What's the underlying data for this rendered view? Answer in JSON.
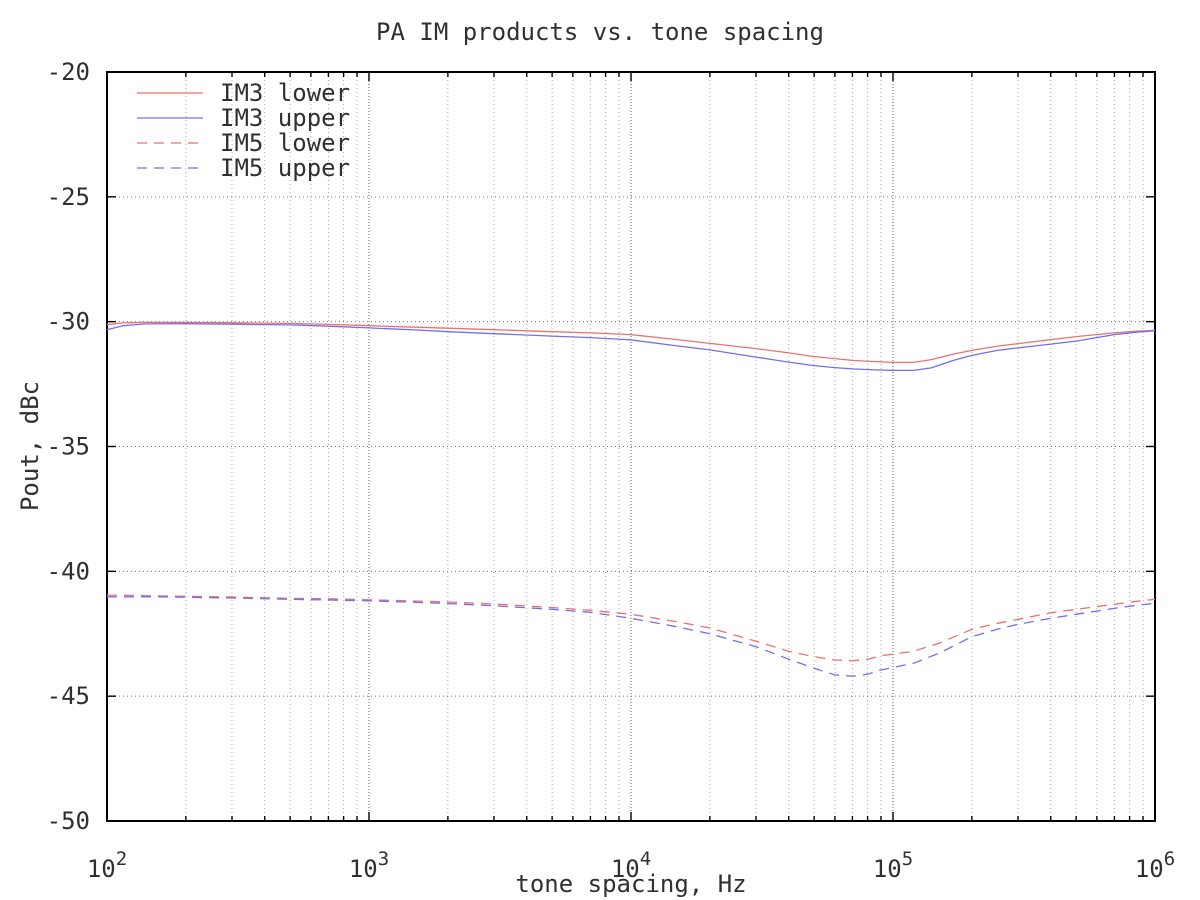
{
  "window": {
    "background": "#ffffff"
  },
  "chart_data": {
    "type": "line",
    "title": "PA IM products vs. tone spacing",
    "xlabel": "tone spacing, Hz",
    "ylabel": "Pout, dBc",
    "x_scale": "log",
    "xlim": [
      100,
      1000000
    ],
    "ylim": [
      -50,
      -20
    ],
    "grid": "dotted gray; vertical gridlines at every log minor and major tick, horizontal at each 5 dB major tick",
    "legend_position": "top-left inside plot, no border",
    "text_color": "#303030",
    "colors": {
      "red_series": "#ee7070",
      "blue_series": "#7070ee",
      "grid_major": "#787878",
      "grid_minor": "#a8a8a8",
      "border": "#000000",
      "background": "#ffffff"
    },
    "x_ticks": [
      {
        "value": 100,
        "label_base": "10",
        "label_exp": "2"
      },
      {
        "value": 1000,
        "label_base": "10",
        "label_exp": "3"
      },
      {
        "value": 10000,
        "label_base": "10",
        "label_exp": "4"
      },
      {
        "value": 100000,
        "label_base": "10",
        "label_exp": "5"
      },
      {
        "value": 1000000,
        "label_base": "10",
        "label_exp": "6"
      }
    ],
    "y_ticks": [
      {
        "value": -20,
        "label": "-20"
      },
      {
        "value": -25,
        "label": "-25"
      },
      {
        "value": -30,
        "label": "-30"
      },
      {
        "value": -35,
        "label": "-35"
      },
      {
        "value": -40,
        "label": "-40"
      },
      {
        "value": -45,
        "label": "-45"
      },
      {
        "value": -50,
        "label": "-50"
      }
    ],
    "series": [
      {
        "name": "IM3 lower",
        "color": "#ee7070",
        "dash": "solid",
        "points": [
          [
            100,
            -30.12
          ],
          [
            115,
            -30.05
          ],
          [
            140,
            -30.03
          ],
          [
            200,
            -30.03
          ],
          [
            300,
            -30.04
          ],
          [
            500,
            -30.07
          ],
          [
            700,
            -30.11
          ],
          [
            1000,
            -30.16
          ],
          [
            1500,
            -30.22
          ],
          [
            2000,
            -30.26
          ],
          [
            3000,
            -30.32
          ],
          [
            5000,
            -30.4
          ],
          [
            7000,
            -30.45
          ],
          [
            10000,
            -30.52
          ],
          [
            15000,
            -30.72
          ],
          [
            20000,
            -30.87
          ],
          [
            30000,
            -31.08
          ],
          [
            40000,
            -31.25
          ],
          [
            50000,
            -31.4
          ],
          [
            60000,
            -31.48
          ],
          [
            70000,
            -31.55
          ],
          [
            85000,
            -31.6
          ],
          [
            100000,
            -31.63
          ],
          [
            120000,
            -31.63
          ],
          [
            140000,
            -31.52
          ],
          [
            170000,
            -31.3
          ],
          [
            200000,
            -31.15
          ],
          [
            250000,
            -30.98
          ],
          [
            300000,
            -30.88
          ],
          [
            400000,
            -30.72
          ],
          [
            500000,
            -30.6
          ],
          [
            700000,
            -30.45
          ],
          [
            850000,
            -30.38
          ],
          [
            1000000,
            -30.35
          ]
        ]
      },
      {
        "name": "IM3 upper",
        "color": "#7070ee",
        "dash": "solid",
        "points": [
          [
            100,
            -30.32
          ],
          [
            115,
            -30.16
          ],
          [
            140,
            -30.09
          ],
          [
            200,
            -30.08
          ],
          [
            300,
            -30.1
          ],
          [
            500,
            -30.13
          ],
          [
            700,
            -30.18
          ],
          [
            1000,
            -30.25
          ],
          [
            1500,
            -30.33
          ],
          [
            2000,
            -30.4
          ],
          [
            3000,
            -30.48
          ],
          [
            5000,
            -30.58
          ],
          [
            7000,
            -30.64
          ],
          [
            10000,
            -30.73
          ],
          [
            15000,
            -30.97
          ],
          [
            20000,
            -31.13
          ],
          [
            30000,
            -31.42
          ],
          [
            40000,
            -31.62
          ],
          [
            50000,
            -31.76
          ],
          [
            60000,
            -31.84
          ],
          [
            70000,
            -31.89
          ],
          [
            85000,
            -31.93
          ],
          [
            100000,
            -31.95
          ],
          [
            120000,
            -31.95
          ],
          [
            140000,
            -31.85
          ],
          [
            170000,
            -31.55
          ],
          [
            200000,
            -31.35
          ],
          [
            250000,
            -31.15
          ],
          [
            300000,
            -31.05
          ],
          [
            400000,
            -30.9
          ],
          [
            500000,
            -30.78
          ],
          [
            700000,
            -30.52
          ],
          [
            850000,
            -30.42
          ],
          [
            1000000,
            -30.36
          ]
        ]
      },
      {
        "name": "IM5 lower",
        "color": "#ee7070",
        "dash": "dashed",
        "points": [
          [
            100,
            -40.95
          ],
          [
            150,
            -40.98
          ],
          [
            200,
            -41.0
          ],
          [
            300,
            -41.03
          ],
          [
            500,
            -41.08
          ],
          [
            700,
            -41.1
          ],
          [
            1000,
            -41.14
          ],
          [
            1500,
            -41.19
          ],
          [
            2000,
            -41.23
          ],
          [
            3000,
            -41.31
          ],
          [
            5000,
            -41.45
          ],
          [
            7000,
            -41.56
          ],
          [
            10000,
            -41.72
          ],
          [
            15000,
            -42.02
          ],
          [
            20000,
            -42.27
          ],
          [
            30000,
            -42.8
          ],
          [
            40000,
            -43.2
          ],
          [
            50000,
            -43.42
          ],
          [
            60000,
            -43.55
          ],
          [
            70000,
            -43.58
          ],
          [
            80000,
            -43.52
          ],
          [
            90000,
            -43.38
          ],
          [
            100000,
            -43.32
          ],
          [
            120000,
            -43.2
          ],
          [
            150000,
            -42.88
          ],
          [
            200000,
            -42.32
          ],
          [
            250000,
            -42.08
          ],
          [
            300000,
            -41.92
          ],
          [
            400000,
            -41.66
          ],
          [
            500000,
            -41.52
          ],
          [
            700000,
            -41.32
          ],
          [
            850000,
            -41.2
          ],
          [
            1000000,
            -41.12
          ]
        ]
      },
      {
        "name": "IM5 upper",
        "color": "#7070ee",
        "dash": "dashed",
        "points": [
          [
            100,
            -41.02
          ],
          [
            150,
            -41.02
          ],
          [
            200,
            -41.04
          ],
          [
            300,
            -41.07
          ],
          [
            500,
            -41.12
          ],
          [
            700,
            -41.15
          ],
          [
            1000,
            -41.18
          ],
          [
            1500,
            -41.24
          ],
          [
            2000,
            -41.29
          ],
          [
            3000,
            -41.38
          ],
          [
            5000,
            -41.52
          ],
          [
            7000,
            -41.64
          ],
          [
            10000,
            -41.88
          ],
          [
            15000,
            -42.22
          ],
          [
            20000,
            -42.5
          ],
          [
            30000,
            -43.02
          ],
          [
            40000,
            -43.52
          ],
          [
            50000,
            -43.88
          ],
          [
            60000,
            -44.15
          ],
          [
            70000,
            -44.2
          ],
          [
            80000,
            -44.12
          ],
          [
            90000,
            -43.95
          ],
          [
            100000,
            -43.85
          ],
          [
            120000,
            -43.68
          ],
          [
            150000,
            -43.28
          ],
          [
            200000,
            -42.62
          ],
          [
            250000,
            -42.32
          ],
          [
            300000,
            -42.12
          ],
          [
            400000,
            -41.88
          ],
          [
            500000,
            -41.72
          ],
          [
            700000,
            -41.48
          ],
          [
            850000,
            -41.36
          ],
          [
            1000000,
            -41.28
          ]
        ]
      }
    ]
  }
}
